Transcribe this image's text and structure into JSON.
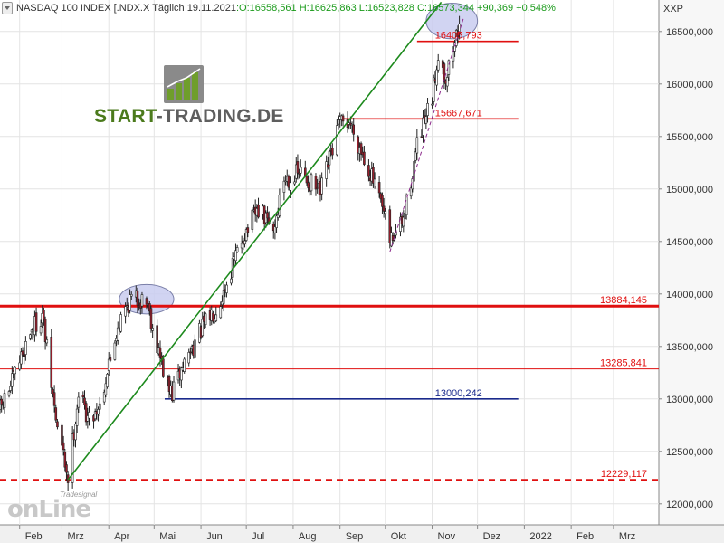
{
  "header": {
    "instrument": "NASDAQ 100 INDEX [.NDX.X",
    "period": "Täglich",
    "date": "19.11.2021",
    "ohlc": ":O:16558,561 H:16625,863 L:16523,828 C:16573,344 +90,369 +0,548%"
  },
  "symbol_label": "XXP",
  "logo": {
    "part1": "START",
    "part2": "-TRADING.DE"
  },
  "watermark": {
    "small": "Tradesignal",
    "big": "onLine"
  },
  "colors": {
    "up": "#ffffff",
    "down": "#9a1e2c",
    "trend": "#1d8a1d",
    "support_red": "#e01010",
    "support_blue": "#1a2a8c",
    "ellipse": "#c9cdf0"
  },
  "chart_data": {
    "type": "candlestick",
    "title": "NASDAQ 100 INDEX [.NDX.X",
    "xlabel": "",
    "ylabel": "",
    "y_scale": "linear",
    "ylim": [
      11800,
      16800
    ],
    "y_ticks": [
      12000,
      12500,
      13000,
      13500,
      14000,
      14500,
      15000,
      15500,
      16000,
      16500
    ],
    "y_tick_labels": [
      "12000,000",
      "12500,000",
      "13000,000",
      "13500,000",
      "14000,000",
      "14500,000",
      "15000,000",
      "15500,000",
      "16000,000",
      "16500,000"
    ],
    "x_range": [
      "2021-01-19",
      "2022-03-31"
    ],
    "x_tick_labels": [
      {
        "date": "2021-02-01",
        "label": "Feb"
      },
      {
        "date": "2021-03-01",
        "label": "Mrz"
      },
      {
        "date": "2021-04-01",
        "label": "Apr"
      },
      {
        "date": "2021-05-01",
        "label": "Mai"
      },
      {
        "date": "2021-06-01",
        "label": "Jun"
      },
      {
        "date": "2021-07-01",
        "label": "Jul"
      },
      {
        "date": "2021-08-01",
        "label": "Aug"
      },
      {
        "date": "2021-09-01",
        "label": "Sep"
      },
      {
        "date": "2021-10-01",
        "label": "Okt"
      },
      {
        "date": "2021-11-01",
        "label": "Nov"
      },
      {
        "date": "2021-12-01",
        "label": "Dez"
      },
      {
        "date": "2022-01-01",
        "label": "2022"
      },
      {
        "date": "2022-02-01",
        "label": "Feb"
      },
      {
        "date": "2022-03-01",
        "label": "Mrz"
      }
    ],
    "anchors": [
      {
        "date": "2021-01-19",
        "value": 12900
      },
      {
        "date": "2021-01-27",
        "value": 13150
      },
      {
        "date": "2021-02-08",
        "value": 13650
      },
      {
        "date": "2021-02-16",
        "value": 13800
      },
      {
        "date": "2021-02-25",
        "value": 12800
      },
      {
        "date": "2021-03-05",
        "value": 12250
      },
      {
        "date": "2021-03-12",
        "value": 13050
      },
      {
        "date": "2021-03-19",
        "value": 12800
      },
      {
        "date": "2021-03-26",
        "value": 12950
      },
      {
        "date": "2021-04-07",
        "value": 13700
      },
      {
        "date": "2021-04-15",
        "value": 13950
      },
      {
        "date": "2021-04-26",
        "value": 13950
      },
      {
        "date": "2021-05-04",
        "value": 13450
      },
      {
        "date": "2021-05-10",
        "value": 13100
      },
      {
        "date": "2021-05-13",
        "value": 13050
      },
      {
        "date": "2021-05-21",
        "value": 13350
      },
      {
        "date": "2021-06-01",
        "value": 13650
      },
      {
        "date": "2021-06-14",
        "value": 13950
      },
      {
        "date": "2021-06-29",
        "value": 14550
      },
      {
        "date": "2021-07-09",
        "value": 14800
      },
      {
        "date": "2021-07-19",
        "value": 14600
      },
      {
        "date": "2021-07-26",
        "value": 15100
      },
      {
        "date": "2021-08-06",
        "value": 15150
      },
      {
        "date": "2021-08-19",
        "value": 14950
      },
      {
        "date": "2021-08-31",
        "value": 15600
      },
      {
        "date": "2021-09-07",
        "value": 15650
      },
      {
        "date": "2021-09-20",
        "value": 15200
      },
      {
        "date": "2021-09-30",
        "value": 14750
      },
      {
        "date": "2021-10-04",
        "value": 14500
      },
      {
        "date": "2021-10-13",
        "value": 14700
      },
      {
        "date": "2021-10-22",
        "value": 15400
      },
      {
        "date": "2021-11-01",
        "value": 15850
      },
      {
        "date": "2021-11-05",
        "value": 16300
      },
      {
        "date": "2021-11-10",
        "value": 16050
      },
      {
        "date": "2021-11-19",
        "value": 16573
      }
    ],
    "horizontal_lines": [
      {
        "value": 16405.793,
        "label": "16405,793",
        "from": "2021-10-22",
        "to": "2021-12-28",
        "color": "#e01010",
        "width": 1.6
      },
      {
        "value": 15667.671,
        "label": "15667,671",
        "from": "2021-09-01",
        "to": "2021-12-28",
        "color": "#e01010",
        "width": 1.6
      },
      {
        "value": 13884.145,
        "label": "13884,145",
        "from": "2021-01-19",
        "to": "2022-03-31",
        "color": "#e01010",
        "width": 3
      },
      {
        "value": 13285.841,
        "label": "13285,841",
        "from": "2021-01-19",
        "to": "2022-03-31",
        "color": "#e01010",
        "width": 1
      },
      {
        "value": 13000.242,
        "label": "13000,242",
        "from": "2021-05-08",
        "to": "2021-12-28",
        "color": "#1a2a8c",
        "width": 1.6
      },
      {
        "value": 12229.117,
        "label": "12229,117",
        "from": "2021-01-19",
        "to": "2022-03-31",
        "color": "#e01010",
        "width": 2,
        "dashed": true
      }
    ],
    "trendlines": [
      {
        "from": {
          "date": "2021-03-05",
          "value": 12229
        },
        "to": {
          "date": "2021-11-07",
          "value": 16780
        },
        "color": "#1d8a1d",
        "dashed": false
      },
      {
        "from": {
          "date": "2021-10-04",
          "value": 14400
        },
        "to": {
          "date": "2021-11-22",
          "value": 16640
        },
        "color": "#8b2a8b",
        "dashed": true
      }
    ],
    "highlight_ellipses": [
      {
        "center_date": "2021-04-26",
        "center_value": 13950,
        "rx_days": 18,
        "ry_value": 140
      },
      {
        "center_date": "2021-11-14",
        "center_value": 16600,
        "rx_days": 17,
        "ry_value": 170
      }
    ],
    "last_date": "2021-11-19",
    "last_close": 16573.344
  }
}
